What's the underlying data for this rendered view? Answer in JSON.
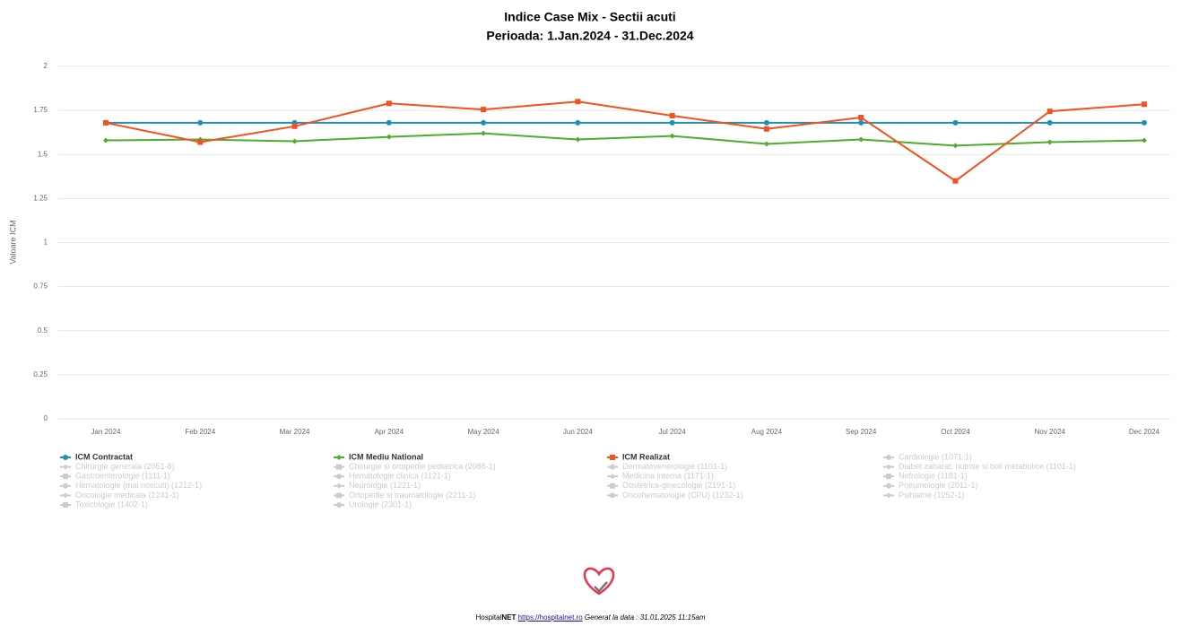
{
  "chart_data": {
    "type": "line",
    "title": "Indice Case Mix - Sectii acuti",
    "subtitle": "Perioada: 1.Jan.2024 - 31.Dec.2024",
    "y_label": "Valoare ICM",
    "categories": [
      "Jan 2024",
      "Feb 2024",
      "Mar 2024",
      "Apr 2024",
      "May 2024",
      "Jun 2024",
      "Jul 2024",
      "Aug 2024",
      "Sep 2024",
      "Oct 2024",
      "Nov 2024",
      "Dec 2024"
    ],
    "series": [
      {
        "name": "ICM Contractat",
        "color": "#1f8fb5",
        "marker": "circle",
        "values": [
          1.68,
          1.68,
          1.68,
          1.68,
          1.68,
          1.68,
          1.68,
          1.68,
          1.68,
          1.68,
          1.68,
          1.68
        ]
      },
      {
        "name": "ICM Mediu National",
        "color": "#4cae2c",
        "marker": "diamond",
        "values": [
          1.58,
          1.585,
          1.575,
          1.6,
          1.62,
          1.585,
          1.605,
          1.56,
          1.585,
          1.55,
          1.57,
          1.58
        ]
      },
      {
        "name": "ICM Realizat",
        "color": "#f4511e",
        "marker": "square",
        "values": [
          1.68,
          1.57,
          1.66,
          1.79,
          1.755,
          1.8,
          1.72,
          1.645,
          1.71,
          1.35,
          1.745,
          1.785
        ]
      }
    ],
    "hidden_series": [
      "Cardiologie (1071-1)",
      "Chirurgie generala (2051-8)",
      "Chirurgie si ortopedie pediatrica (2088-1)",
      "Dermatovenerologie (1101-1)",
      "Diabet zaharat, nutritie si boli metabolice (1101-1)",
      "Gastroenterologie (1111-1)",
      "Hematologie clinica (1121-1)",
      "Medicina interna (1171-1)",
      "Nefrologie (1181-1)",
      "Hematologie (mai noscuti) (1212-1)",
      "Neurologie (1221-1)",
      "Obstetrica-ginecologie (2191-1)",
      "Pneumologie (2011-1)",
      "Oncologie medicala (1241-1)",
      "Ortopedie si traumatologie (2211-1)",
      "Oncohematologie (CPU) (1232-1)",
      "Psihiatrie (1252-1)",
      "Toxicologie (1402-1)",
      "Urologie (2301-1)"
    ],
    "hidden_color": "#cccccc",
    "ylim": [
      0,
      2
    ],
    "yticks": [
      0,
      0.25,
      0.5,
      0.75,
      1,
      1.25,
      1.5,
      1.75,
      2
    ],
    "grid": true
  },
  "footer": {
    "brand": "Hospital",
    "brand_bold": "NET",
    "link": "https://hospitalnet.ro",
    "generated": "Generat la data : 31.01.2025 11:15am"
  }
}
